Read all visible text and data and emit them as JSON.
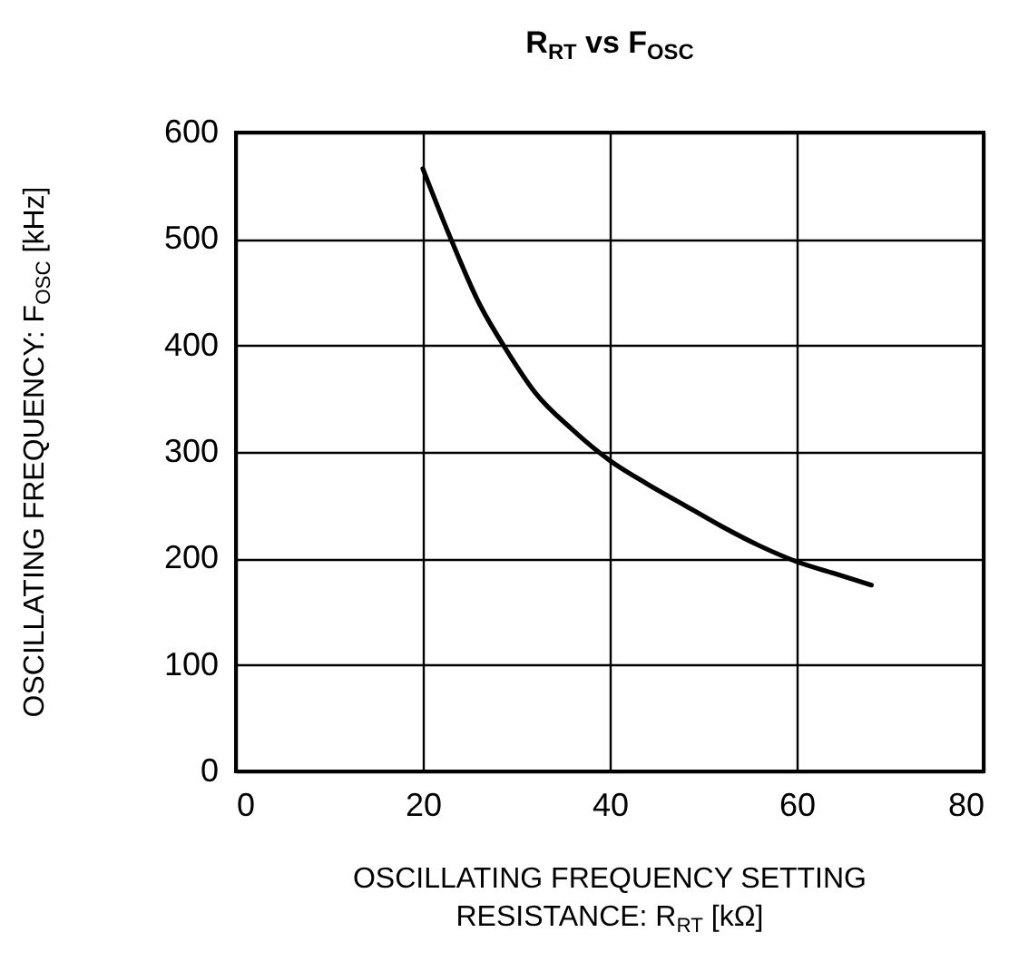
{
  "chart_data": {
    "type": "line",
    "title": "R$_{RT}$ vs F$_{OSC}$",
    "xlabel": "OSCILLATING FREQUENCY SETTING RESISTANCE: R$_{RT}$ [kΩ]",
    "ylabel": "OSCILLATING FREQUENCY: F$_{OSC}$ [kHz]",
    "x": [
      20,
      23,
      26,
      29,
      32,
      36,
      40,
      44,
      48,
      52,
      56,
      60,
      64,
      68
    ],
    "values": [
      566,
      500,
      440,
      395,
      356,
      321,
      292,
      270,
      250,
      230,
      212,
      197,
      186,
      175
    ],
    "color": "#000000",
    "line_style": "solid",
    "xlim": [
      0,
      80
    ],
    "ylim": [
      0,
      600
    ],
    "xticks": [
      0,
      20,
      40,
      60,
      80
    ],
    "yticks": [
      0,
      100,
      200,
      300,
      400,
      500,
      600
    ],
    "grid": true
  }
}
